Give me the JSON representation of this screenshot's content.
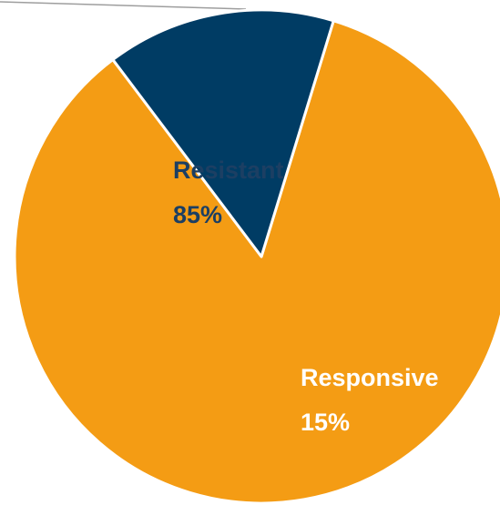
{
  "chart_data": {
    "type": "pie",
    "title": "",
    "slices": [
      {
        "label": "Resistant",
        "value": 85,
        "value_label": "85%",
        "color": "#f49c14",
        "label_color": "#1c3f63"
      },
      {
        "label": "Responsive",
        "value": 15,
        "value_label": "15%",
        "color": "#003c64",
        "label_color": "#ffffff"
      }
    ],
    "edge_color": "#ffffff",
    "leader_line_color": "#9e9e9e"
  }
}
